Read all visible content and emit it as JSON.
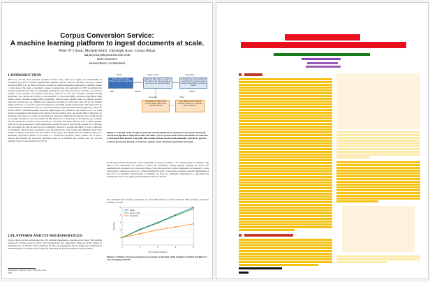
{
  "left_page": {
    "title_line1": "Corpus Conversion Service:",
    "title_line2": "A machine learning platform to ingest documents at scale.",
    "authors": "Peter W J Staar, Michele Dolfi, Christoph Auer, Costas Bekas",
    "emails": "taa,dol,cau,bek@zurich.ibm.com",
    "affiliation": "IBM Research",
    "location": "Rueschlikon, Switzerland",
    "section1_title": "1   INTRODUCTION",
    "section1_text": "PDF is by far the most prevalent document format today. There are roughly 2.5 trillion PDFs in circulation [1] such as scientific publications, manuals, reports, contracts and more. However, content encoded in PDF is by its nature reduced to streams of printing instructions purposed to faithfully present a visual layout. The task of automatic content reconstruction and conversion of PDF documents into structured data files has been an outstanding problem for over three decades [2, 3]. Here, we present a solution to the problem of document conversion, which at its core uses trainable, machine learning algorithms. The central idea is that we avoid heuristic or rule-based (RB) conversion algorithms, using instead generic machine learning (ML) algorithms, which produce models based on gathered ground-truth data. In this way, we eliminate the continuous tweaking of conversion rules and let the solution simply learn how to correctly convert documents by providing enough ground-truth. This approach is in stark contrast to current state of the art conversion systems (both open-source and proprietary), which are all RB. While a machine learning approach might appear very natural in the current era of AI, it has serious consequences with regard to the design of such a solution. First, one should think at the level of a document collection (or a corpus of documents) as opposed to individual documents, since an ML model for a single document is not very useful. An ML model for a certain type of documents (e.g. scientific articles, regulations, contracts, etc.) obviously is. Secondly, one needs efficient tools to gather ground-truth via so-called annotation. These annotations can then be used to train the ML models. It is clear then that leveraging ML adds an extra level of complexity: One has to provide the ability to store a collection of documents, annotate these documents, store the annotations, train models and ultimately apply these models on unseen documents. For the authors of this paper, this implied that our solution cannot be a monolithic application. Rather it was build as a cloud-based platform, which consists out of micro-services that execute the previously mentioned tasks in an efficient and scalable way. We call this platform Corpus Conversion Service (CCS).",
    "section2_title": "2   PLATFORM AND ITS MICROSERVICES",
    "section2_text": "Using a micro-services architecture, the CCS platform implements a pipeline on the cloud. This pipeline consists out of micro-services, which can be grouped into five components. These are (1) the parsing of documents into an internal format optimised for ML, (2) applying the ML model(s), (3) assembling the document(s) into a structured data format, (4) annotating the parsed documents and (5) training",
    "footnote": "SysML2018, February 2018, California, USA",
    "footnote2": "2018.",
    "fig1_labels": {
      "parse": "Parse",
      "apply_model": "Apply model",
      "assemble": "Assemble",
      "annotate": "Annotate",
      "train": "Train",
      "extract": "Extract all text-cells, bitmap images & linepaths",
      "apply_models": "Apply the ML model on each of the cells of the parsed page to determine its semantic label",
      "assemble_doc": "Assemble the document(s) by combining the parsed pages and their associated predicted labels",
      "annotate_cells": "Annotate the cells in the parsed pages with layout semantic labels.",
      "train_default": "Train default and/or layout specific models for semantic label prediction",
      "model_label": "Model",
      "json_label": "JSON",
      "pdf_label": "PDF"
    },
    "fig1_caption": "Figure 1: A sketch of the Corpus Conversion Service platform for document conversion. The main conversion pipeline is depicted in blue and allows you to process and convert documents at scale into a structured data format. The green and orange sections can be used optionally, in order to process scanned documents (green) or train new models based on human annotation (orange).",
    "right_col_text": "the models from the annotations. These components are shown in Figure 1. If a trained model is available, only three of the components are needed to convert the documents, namely parsing, applying the model and assembling the document. As is shown in Figure 2, the microservices in these components are designed to scale with regard to compute resources (i.e. virtual machines) in order to keep time-to-solution constant, independent of the load. If no machine learned model is available, we have two additional components, i.e. annotation and training, that allow us to gather ground-truth and train new models.",
    "right_col_text2": "The annotation and training components are what differentiates us from traditional, RB document conversion solutions. We will",
    "fig2_caption": "Figure 2: Number of processed pages per second as a function of the number of virtual machines (4 core, 8 Gigabyte RAM).",
    "fig2_xlabel": "# of virtual machines",
    "fig2_ylabel": "Speedup",
    "fig2_legend": [
      "parse",
      "apply model",
      "assemble"
    ]
  },
  "fig2_chart_data": {
    "type": "line",
    "x": [
      1,
      2,
      3,
      4,
      5
    ],
    "series": [
      {
        "name": "parse",
        "values": [
          1,
          2.1,
          3.0,
          4.0,
          5.0
        ],
        "color": "#1f77b4"
      },
      {
        "name": "apply model",
        "values": [
          1,
          2.0,
          2.9,
          3.9,
          4.8
        ],
        "color": "#2ca02c"
      },
      {
        "name": "assemble",
        "values": [
          1,
          1.5,
          2.0,
          2.4,
          2.8
        ],
        "color": "#ff7f0e"
      }
    ],
    "xlabel": "# of virtual machines",
    "ylabel": "Speedup",
    "grid": true,
    "legend": "top-left"
  },
  "right_page": {
    "description": "Layout-annotation overlay of the same page: colored blocks mark title, authors, headings, body text, figure and caption regions.",
    "colors": {
      "title": "#e8101e",
      "author": "#1a7a1a",
      "affiliation": "#9b3bd6",
      "heading": "#c0392b",
      "text": "#f5c213",
      "text_light": "#fde9a8",
      "figure": "#fbe4b8",
      "footnote": "#111111"
    }
  }
}
